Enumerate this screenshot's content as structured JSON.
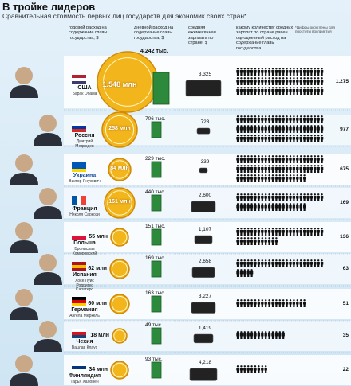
{
  "header": {
    "title": "В тройке лидеров",
    "subtitle": "Сравнительная стоимость первых лиц государств для экономик своих стран*"
  },
  "columns": [
    "годовой расход на содержание главы государства, $",
    "дневной расход на содержание главы государства, $",
    "средняя ежемесячная зарплата по стране, $",
    "какому количеству средних зарплат по стране равен однодневный расход на содержание главы государства"
  ],
  "footnote": "*Цифры округлены для простоты восприятия",
  "rows": [
    {
      "country": "США",
      "leader": "Барак Обама",
      "annual": "1.548 млн",
      "daily": "4.242 тыс.",
      "salary": "3.325",
      "ratio": "1.275"
    },
    {
      "country": "Россия",
      "leader": "Дмитрий Медведев",
      "annual": "258 млн",
      "daily": "706 тыс.",
      "salary": "723",
      "ratio": "977"
    },
    {
      "country": "Украина",
      "leader": "Виктор Янукович",
      "annual": "84 млн",
      "daily": "229 тыс.",
      "salary": "339",
      "ratio": "675"
    },
    {
      "country": "Франция",
      "leader": "Николя Саркози",
      "annual": "161 млн",
      "daily": "440 тыс.",
      "salary": "2,600",
      "ratio": "169"
    },
    {
      "country": "Польша",
      "leader": "Бронислав Коморовский",
      "annual": "55 млн",
      "daily": "151 тыс.",
      "salary": "1,107",
      "ratio": "136"
    },
    {
      "country": "Испания",
      "leader": "Хосе Луис Родригес Сапатеро",
      "annual": "62 млн",
      "daily": "169 тыс.",
      "salary": "2,658",
      "ratio": "63"
    },
    {
      "country": "Германия",
      "leader": "Ангела Меркель",
      "annual": "60 млн",
      "daily": "163 тыс.",
      "salary": "3,227",
      "ratio": "51"
    },
    {
      "country": "Чехия",
      "leader": "Вацлав Клаус",
      "annual": "18 млн",
      "daily": "49 тыс.",
      "salary": "1,419",
      "ratio": "35"
    },
    {
      "country": "Финляндия",
      "leader": "Тарья Халонен",
      "annual": "34 млн",
      "daily": "93 тыс.",
      "salary": "4,218",
      "ratio": "22"
    }
  ]
}
